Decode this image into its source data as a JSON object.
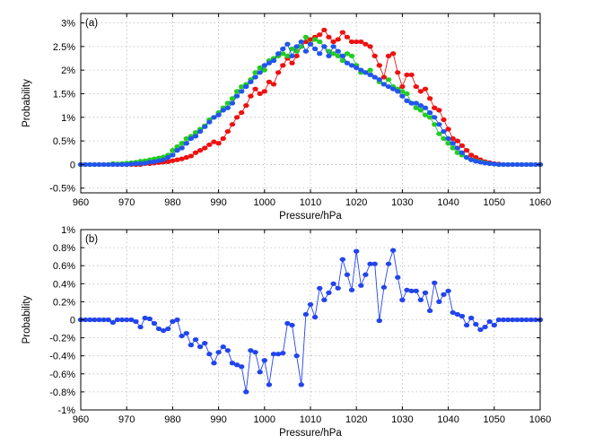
{
  "chart_data": [
    {
      "panel_label": "(a)",
      "type": "line",
      "xlabel": "Pressure/hPa",
      "ylabel": "Probability",
      "xlim": [
        960,
        1060
      ],
      "ylim": [
        -0.6,
        3.2
      ],
      "x_ticks": [
        960,
        970,
        980,
        990,
        1000,
        1010,
        1020,
        1030,
        1040,
        1050,
        1060
      ],
      "y_ticks": [
        -0.5,
        0,
        0.5,
        1,
        1.5,
        2,
        2.5,
        3
      ],
      "y_tick_labels": [
        "-0.5%",
        "0",
        "0.5%",
        "1%",
        "1.5%",
        "2%",
        "2.5%",
        "3%"
      ],
      "grid": true,
      "x": [
        960,
        961,
        962,
        963,
        964,
        965,
        966,
        967,
        968,
        969,
        970,
        971,
        972,
        973,
        974,
        975,
        976,
        977,
        978,
        979,
        980,
        981,
        982,
        983,
        984,
        985,
        986,
        987,
        988,
        989,
        990,
        991,
        992,
        993,
        994,
        995,
        996,
        997,
        998,
        999,
        1000,
        1001,
        1002,
        1003,
        1004,
        1005,
        1006,
        1007,
        1008,
        1009,
        1010,
        1011,
        1012,
        1013,
        1014,
        1015,
        1016,
        1017,
        1018,
        1019,
        1020,
        1021,
        1022,
        1023,
        1024,
        1025,
        1026,
        1027,
        1028,
        1029,
        1030,
        1031,
        1032,
        1033,
        1034,
        1035,
        1036,
        1037,
        1038,
        1039,
        1040,
        1041,
        1042,
        1043,
        1044,
        1045,
        1046,
        1047,
        1048,
        1049,
        1050,
        1051,
        1052,
        1053,
        1054,
        1055,
        1056,
        1057,
        1058,
        1059,
        1060
      ],
      "series": [
        {
          "color": "#ee1111",
          "values": [
            0,
            0,
            0,
            0,
            0,
            0,
            0,
            0,
            0,
            0,
            0,
            0,
            0,
            0,
            0.02,
            0.02,
            0.03,
            0.04,
            0.05,
            0.06,
            0.08,
            0.1,
            0.12,
            0.15,
            0.18,
            0.25,
            0.3,
            0.35,
            0.42,
            0.48,
            0.45,
            0.55,
            0.7,
            0.85,
            1.0,
            1.1,
            1.25,
            1.45,
            1.6,
            1.5,
            1.55,
            1.75,
            1.7,
            1.95,
            2.1,
            2.25,
            2.15,
            2.3,
            2.5,
            2.6,
            2.65,
            2.7,
            2.75,
            2.85,
            2.7,
            2.6,
            2.65,
            2.8,
            2.7,
            2.6,
            2.6,
            2.6,
            2.55,
            2.5,
            2.3,
            2.1,
            1.85,
            2.3,
            2.35,
            1.95,
            1.65,
            1.9,
            1.9,
            1.65,
            1.55,
            1.6,
            1.4,
            1.2,
            1.15,
            0.95,
            0.75,
            0.55,
            0.5,
            0.4,
            0.3,
            0.2,
            0.15,
            0.1,
            0.06,
            0.04,
            0.02,
            0.01,
            0,
            0,
            0,
            0,
            0,
            0,
            0,
            0,
            0
          ]
        },
        {
          "color": "#22cc22",
          "values": [
            0,
            0,
            0,
            0,
            0,
            0,
            0,
            0.02,
            0.01,
            0.02,
            0.03,
            0.04,
            0.05,
            0.07,
            0.08,
            0.1,
            0.12,
            0.14,
            0.16,
            0.2,
            0.3,
            0.38,
            0.45,
            0.55,
            0.6,
            0.68,
            0.75,
            0.82,
            0.95,
            1.0,
            1.1,
            1.2,
            1.3,
            1.4,
            1.55,
            1.65,
            1.7,
            1.8,
            1.95,
            2.05,
            2.0,
            2.2,
            2.25,
            2.3,
            2.35,
            2.3,
            2.45,
            2.4,
            2.5,
            2.7,
            2.55,
            2.65,
            2.6,
            2.5,
            2.4,
            2.35,
            2.3,
            2.2,
            2.35,
            2.3,
            2.1,
            1.95,
            1.95,
            2.0,
            1.85,
            1.75,
            1.7,
            1.8,
            1.65,
            1.6,
            1.55,
            1.5,
            1.3,
            1.2,
            1.15,
            1.05,
            1.0,
            0.85,
            0.65,
            0.55,
            0.45,
            0.35,
            0.25,
            0.2,
            0.15,
            0.1,
            0.08,
            0.06,
            0.04,
            0.02,
            0.01,
            0,
            0,
            0,
            0,
            0,
            0,
            0,
            0,
            0,
            0
          ]
        },
        {
          "color": "#2255ee",
          "values": [
            0,
            0,
            0,
            0,
            0,
            0,
            0,
            0,
            0,
            0,
            0,
            0.01,
            0.02,
            0.02,
            0.03,
            0.05,
            0.06,
            0.08,
            0.1,
            0.15,
            0.2,
            0.3,
            0.35,
            0.45,
            0.55,
            0.6,
            0.7,
            0.8,
            0.9,
            1.0,
            1.05,
            1.15,
            1.2,
            1.3,
            1.45,
            1.55,
            1.65,
            1.75,
            1.85,
            1.95,
            2.1,
            2.15,
            2.2,
            2.35,
            2.45,
            2.55,
            2.3,
            2.5,
            2.6,
            2.4,
            2.55,
            2.45,
            2.35,
            2.5,
            2.3,
            2.5,
            2.4,
            2.3,
            2.15,
            2.1,
            2.05,
            2.0,
            1.95,
            1.9,
            1.85,
            1.8,
            1.7,
            1.65,
            1.6,
            1.55,
            1.45,
            1.35,
            1.3,
            1.3,
            1.25,
            1.2,
            1.1,
            1.0,
            0.85,
            0.7,
            0.55,
            0.45,
            0.35,
            0.25,
            0.15,
            0.1,
            0.07,
            0.05,
            0.03,
            0.02,
            0.01,
            0,
            0,
            0,
            0,
            0,
            0,
            0,
            0,
            0,
            0
          ]
        }
      ]
    },
    {
      "panel_label": "(b)",
      "type": "line",
      "xlabel": "Pressure/hPa",
      "ylabel": "Probability",
      "xlim": [
        960,
        1060
      ],
      "ylim": [
        -1,
        1
      ],
      "x_ticks": [
        960,
        970,
        980,
        990,
        1000,
        1010,
        1020,
        1030,
        1040,
        1050,
        1060
      ],
      "y_ticks": [
        -1,
        -0.8,
        -0.6,
        -0.4,
        -0.2,
        0,
        0.2,
        0.4,
        0.6,
        0.8,
        1
      ],
      "y_tick_labels": [
        "-1%",
        "-0.8%",
        "-0.6%",
        "-0.4%",
        "-0.2%",
        "0",
        "0.2%",
        "0.4%",
        "0.6%",
        "0.8%",
        "1%"
      ],
      "grid": true,
      "x": [
        960,
        961,
        962,
        963,
        964,
        965,
        966,
        967,
        968,
        969,
        970,
        971,
        972,
        973,
        974,
        975,
        976,
        977,
        978,
        979,
        980,
        981,
        982,
        983,
        984,
        985,
        986,
        987,
        988,
        989,
        990,
        991,
        992,
        993,
        994,
        995,
        996,
        997,
        998,
        999,
        1000,
        1001,
        1002,
        1003,
        1004,
        1005,
        1006,
        1007,
        1008,
        1009,
        1010,
        1011,
        1012,
        1013,
        1014,
        1015,
        1016,
        1017,
        1018,
        1019,
        1020,
        1021,
        1022,
        1023,
        1024,
        1025,
        1026,
        1027,
        1028,
        1029,
        1030,
        1031,
        1032,
        1033,
        1034,
        1035,
        1036,
        1037,
        1038,
        1039,
        1040,
        1041,
        1042,
        1043,
        1044,
        1045,
        1046,
        1047,
        1048,
        1049,
        1050,
        1051,
        1052,
        1053,
        1054,
        1055,
        1056,
        1057,
        1058,
        1059,
        1060
      ],
      "series": [
        {
          "color": "#2244ee",
          "values": [
            0,
            0,
            0,
            0,
            0,
            0,
            0,
            -0.03,
            0,
            0,
            0,
            0,
            -0.02,
            -0.08,
            0.02,
            0.01,
            -0.04,
            -0.1,
            -0.12,
            -0.1,
            -0.02,
            0,
            -0.18,
            -0.15,
            -0.28,
            -0.22,
            -0.3,
            -0.26,
            -0.38,
            -0.48,
            -0.36,
            -0.3,
            -0.34,
            -0.48,
            -0.5,
            -0.52,
            -0.8,
            -0.34,
            -0.36,
            -0.58,
            -0.45,
            -0.72,
            -0.38,
            -0.38,
            -0.37,
            -0.04,
            -0.06,
            -0.4,
            -0.72,
            0.06,
            0.17,
            0.03,
            0.35,
            0.22,
            0.3,
            0.4,
            0.35,
            0.67,
            0.5,
            0.33,
            0.76,
            0.38,
            0.5,
            0.62,
            0.62,
            -0.01,
            0.36,
            0.62,
            0.77,
            0.47,
            0.22,
            0.33,
            0.32,
            0.32,
            0.22,
            0.3,
            0.1,
            0.41,
            0.2,
            0.28,
            0.32,
            0.08,
            0.06,
            0.04,
            -0.06,
            0.02,
            -0.05,
            -0.11,
            -0.08,
            -0.02,
            -0.06,
            0,
            0,
            0,
            0,
            0,
            0,
            0,
            0,
            0,
            0
          ]
        }
      ]
    }
  ]
}
